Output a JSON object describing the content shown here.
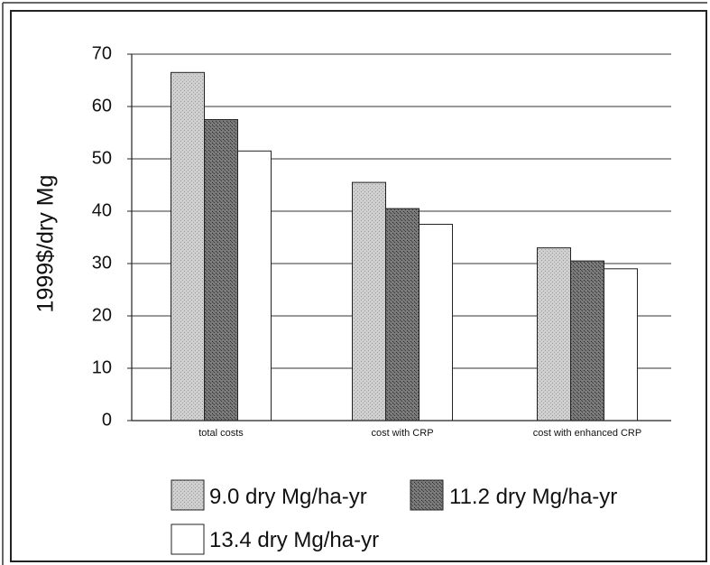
{
  "chart_data": {
    "type": "bar",
    "ylabel": "1999$/dry Mg",
    "xlabel": "",
    "ylim": [
      0,
      70
    ],
    "yticks": [
      0,
      10,
      20,
      30,
      40,
      50,
      60,
      70
    ],
    "categories": [
      "total costs",
      "cost with CRP",
      "cost with enhanced CRP"
    ],
    "series": [
      {
        "name": "9.0 dry Mg/ha-yr",
        "values": [
          66.5,
          45.5,
          33
        ],
        "color": "#c8c8c8"
      },
      {
        "name": "11.2 dry Mg/ha-yr",
        "values": [
          57.5,
          40.5,
          30.5
        ],
        "color": "#6a6a6a"
      },
      {
        "name": "13.4 dry Mg/ha-yr",
        "values": [
          51.5,
          37.5,
          29
        ],
        "color": "#ffffff"
      }
    ],
    "grid": true,
    "legend_position": "bottom"
  }
}
